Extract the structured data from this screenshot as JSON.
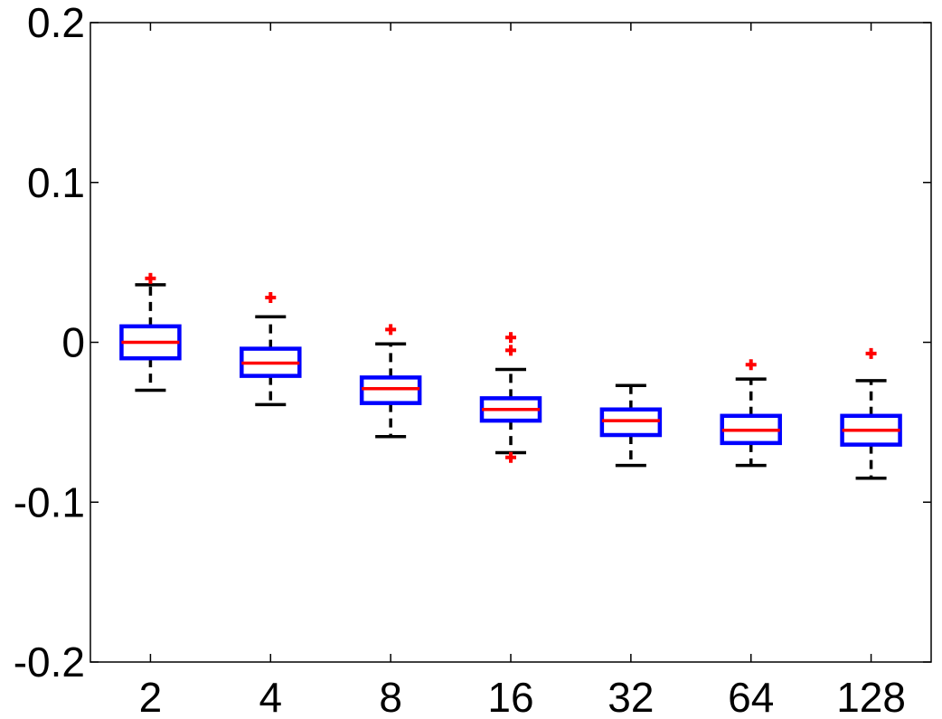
{
  "chart_data": {
    "type": "boxplot",
    "title": "",
    "xlabel": "",
    "ylabel": "",
    "categories": [
      "2",
      "4",
      "8",
      "16",
      "32",
      "64",
      "128"
    ],
    "ylim": [
      -0.2,
      0.2
    ],
    "yticks": [
      -0.2,
      -0.1,
      0,
      0.1,
      0.2
    ],
    "ytick_labels": [
      "-0.2",
      "-0.1",
      "0",
      "0.1",
      "0.2"
    ],
    "grid": false,
    "boxes": [
      {
        "category": "2",
        "whisker_low": -0.03,
        "q1": -0.01,
        "median": 0.0,
        "q3": 0.01,
        "whisker_high": 0.036,
        "outliers": [
          0.04
        ]
      },
      {
        "category": "4",
        "whisker_low": -0.039,
        "q1": -0.021,
        "median": -0.013,
        "q3": -0.004,
        "whisker_high": 0.016,
        "outliers": [
          0.028
        ]
      },
      {
        "category": "8",
        "whisker_low": -0.059,
        "q1": -0.038,
        "median": -0.029,
        "q3": -0.022,
        "whisker_high": -0.001,
        "outliers": [
          0.008
        ]
      },
      {
        "category": "16",
        "whisker_low": -0.069,
        "q1": -0.049,
        "median": -0.042,
        "q3": -0.035,
        "whisker_high": -0.017,
        "outliers": [
          0.003,
          -0.005,
          -0.072
        ]
      },
      {
        "category": "32",
        "whisker_low": -0.077,
        "q1": -0.058,
        "median": -0.049,
        "q3": -0.042,
        "whisker_high": -0.027,
        "outliers": []
      },
      {
        "category": "64",
        "whisker_low": -0.077,
        "q1": -0.063,
        "median": -0.055,
        "q3": -0.046,
        "whisker_high": -0.023,
        "outliers": [
          -0.014
        ]
      },
      {
        "category": "128",
        "whisker_low": -0.085,
        "q1": -0.064,
        "median": -0.055,
        "q3": -0.046,
        "whisker_high": -0.024,
        "outliers": [
          -0.007
        ]
      }
    ],
    "colors": {
      "box": "#0000ff",
      "median": "#ff0000",
      "whisker": "#000000",
      "outlier": "#ff0000",
      "axes": "#000000"
    }
  }
}
